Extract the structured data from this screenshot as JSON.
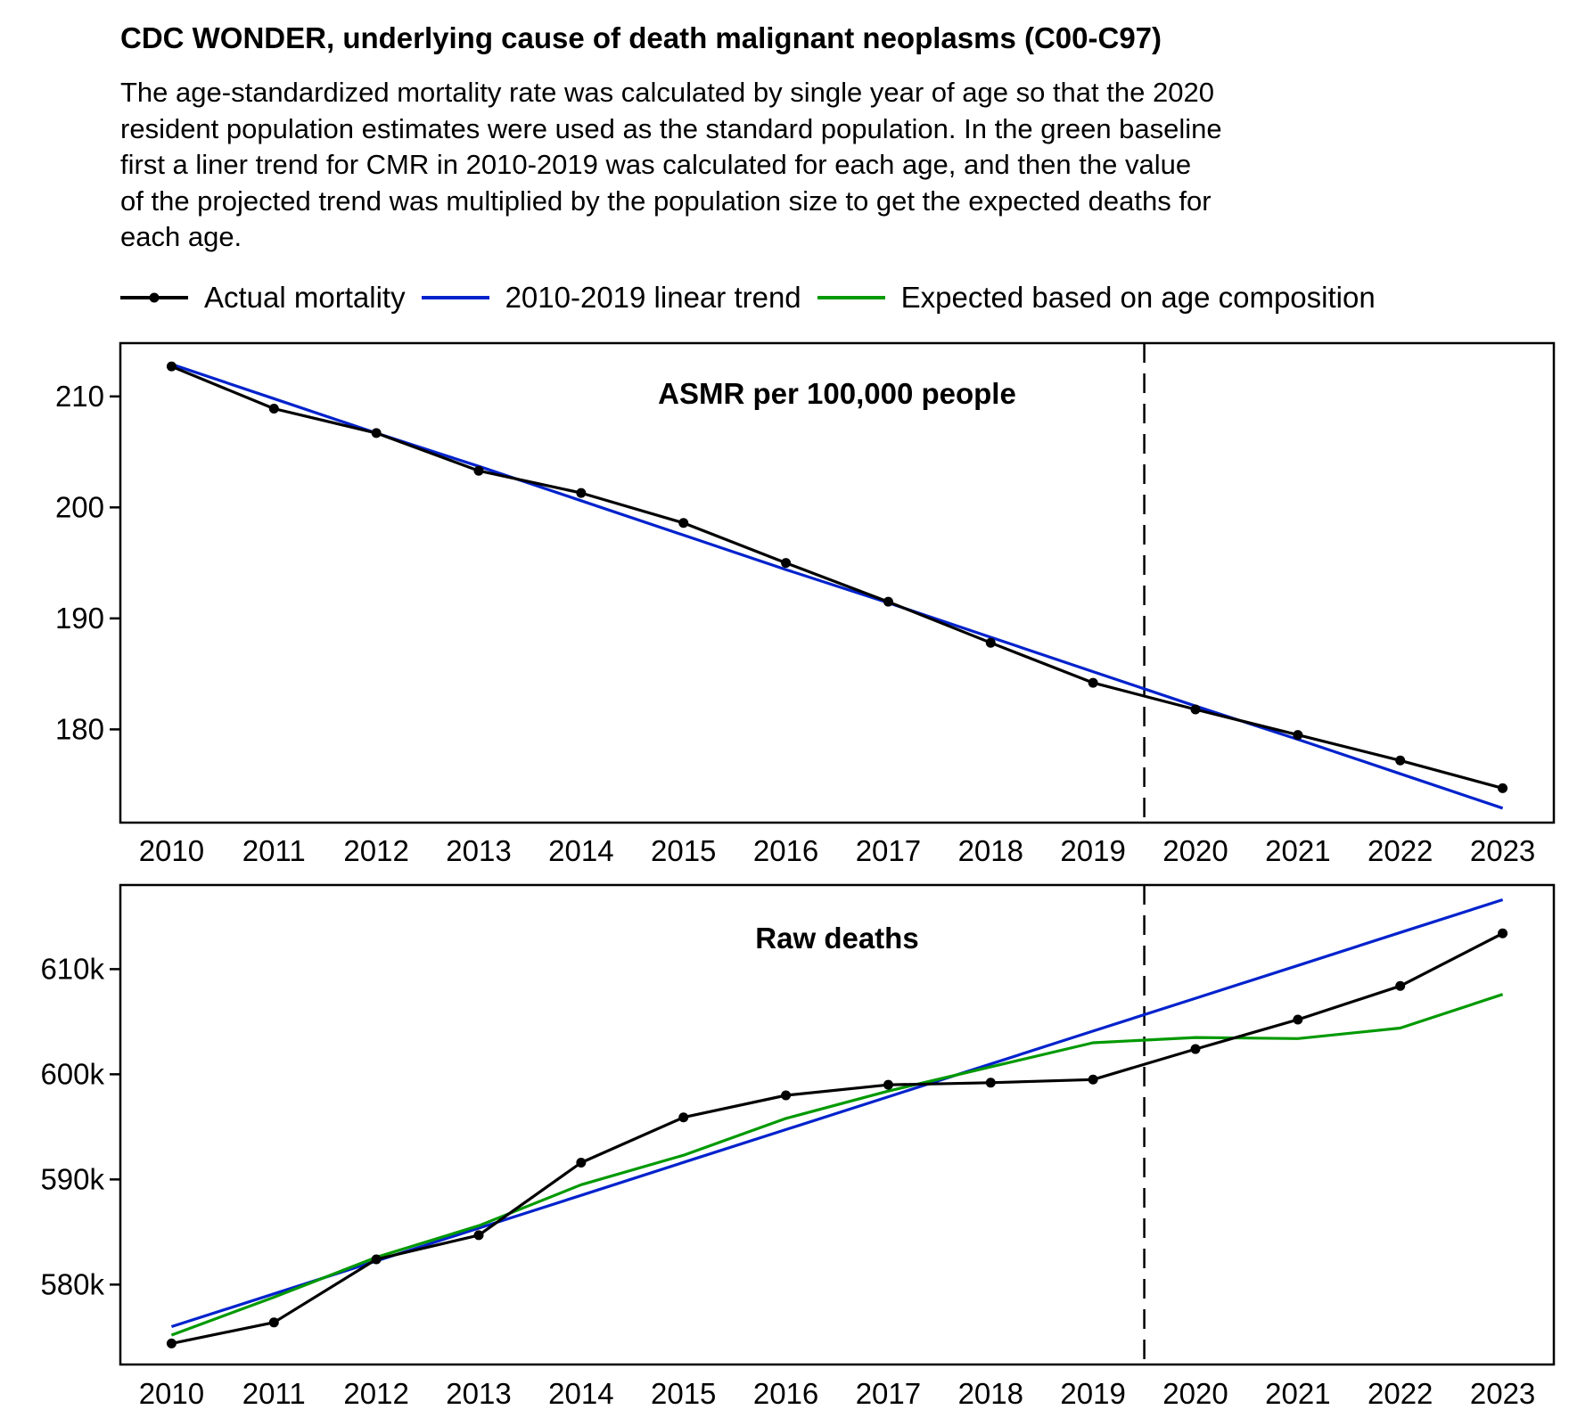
{
  "header": {
    "title": "CDC WONDER, underlying cause of death malignant neoplasms (C00-C97)",
    "subtitle_lines": [
      "The age-standardized mortality rate was calculated by single year of age so that the 2020",
      "resident population estimates were used as the standard population. In the green baseline",
      "first a liner trend for CMR in 2010-2019 was calculated for each age, and then the value",
      "of the projected trend was multiplied by the population size to get the expected deaths for",
      "each age."
    ]
  },
  "legend": [
    {
      "label": "Actual mortality",
      "color": "#000000",
      "marker": "dot"
    },
    {
      "label": "2010-2019 linear trend",
      "color": "#0022cc",
      "marker": "none"
    },
    {
      "label": "Expected based on age composition",
      "color": "#009900",
      "marker": "none"
    }
  ],
  "chart_data": [
    {
      "type": "line",
      "title": "ASMR per 100,000 people",
      "x": [
        2010,
        2011,
        2012,
        2013,
        2014,
        2015,
        2016,
        2017,
        2018,
        2019,
        2020,
        2021,
        2022,
        2023
      ],
      "x_tick_labels": [
        "2010",
        "2011",
        "2012",
        "2013",
        "2014",
        "2015",
        "2016",
        "2017",
        "2018",
        "2019",
        "2020",
        "2021",
        "2022",
        "2023"
      ],
      "y_ticks": [
        180,
        190,
        200,
        210
      ],
      "y_tick_labels": [
        "180",
        "190",
        "200",
        "210"
      ],
      "ylim": [
        171.6,
        214.8
      ],
      "xlim": [
        2009.5,
        2023.5
      ],
      "vline_x": 2019.5,
      "grid": false,
      "series": [
        {
          "name": "Actual mortality",
          "color": "#000000",
          "markers": true,
          "values": [
            212.7,
            208.9,
            206.7,
            203.3,
            201.3,
            198.6,
            195.0,
            191.5,
            187.8,
            184.2,
            181.8,
            179.5,
            177.2,
            174.7
          ]
        },
        {
          "name": "2010-2019 linear trend",
          "color": "#0022cc",
          "markers": false,
          "values": [
            212.9,
            209.8,
            206.7,
            203.7,
            200.6,
            197.5,
            194.4,
            191.4,
            188.3,
            185.2,
            182.1,
            179.1,
            176.0,
            172.9
          ]
        }
      ]
    },
    {
      "type": "line",
      "title": "Raw deaths",
      "x": [
        2010,
        2011,
        2012,
        2013,
        2014,
        2015,
        2016,
        2017,
        2018,
        2019,
        2020,
        2021,
        2022,
        2023
      ],
      "x_tick_labels": [
        "2010",
        "2011",
        "2012",
        "2013",
        "2014",
        "2015",
        "2016",
        "2017",
        "2018",
        "2019",
        "2020",
        "2021",
        "2022",
        "2023"
      ],
      "y_ticks": [
        580000,
        590000,
        600000,
        610000
      ],
      "y_tick_labels": [
        "580k",
        "590k",
        "600k",
        "610k"
      ],
      "ylim": [
        572400,
        618000
      ],
      "xlim": [
        2009.5,
        2023.5
      ],
      "vline_x": 2019.5,
      "grid": false,
      "series": [
        {
          "name": "Actual mortality",
          "color": "#000000",
          "markers": true,
          "values": [
            574400,
            576400,
            582400,
            584700,
            591600,
            595900,
            598000,
            599000,
            599200,
            599500,
            602400,
            605200,
            608400,
            613400
          ]
        },
        {
          "name": "2010-2019 linear trend",
          "color": "#0022cc",
          "markers": false,
          "values": [
            576000,
            579120,
            582250,
            585370,
            588490,
            591620,
            594740,
            597860,
            600980,
            604110,
            607230,
            610350,
            613480,
            616600
          ]
        },
        {
          "name": "Expected based on age composition",
          "color": "#009900",
          "markers": false,
          "values": [
            575200,
            578800,
            582600,
            585600,
            589500,
            592300,
            595800,
            598400,
            600700,
            603000,
            603500,
            603400,
            604400,
            607600
          ]
        }
      ]
    }
  ]
}
